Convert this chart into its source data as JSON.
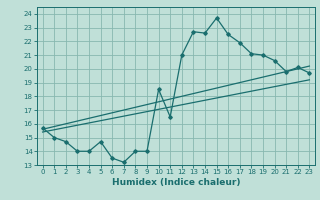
{
  "xlabel": "Humidex (Indice chaleur)",
  "bg_color": "#c0e0d8",
  "grid_color": "#88b8b0",
  "line_color": "#1a6e6e",
  "xlim": [
    -0.5,
    23.5
  ],
  "ylim": [
    13,
    24.5
  ],
  "yticks": [
    13,
    14,
    15,
    16,
    17,
    18,
    19,
    20,
    21,
    22,
    23,
    24
  ],
  "xticks": [
    0,
    1,
    2,
    3,
    4,
    5,
    6,
    7,
    8,
    9,
    10,
    11,
    12,
    13,
    14,
    15,
    16,
    17,
    18,
    19,
    20,
    21,
    22,
    23
  ],
  "line1_x": [
    0,
    1,
    2,
    3,
    4,
    5,
    6,
    7,
    8,
    9,
    10,
    11,
    12,
    13,
    14,
    15,
    16,
    17,
    18,
    19,
    20,
    21,
    22,
    23
  ],
  "line1_y": [
    15.7,
    15.0,
    14.7,
    14.0,
    14.0,
    14.7,
    13.5,
    13.2,
    14.0,
    14.0,
    18.5,
    16.5,
    21.0,
    22.7,
    22.6,
    23.7,
    22.5,
    21.9,
    21.1,
    21.0,
    20.6,
    19.8,
    20.1,
    19.7
  ],
  "line2_x": [
    0,
    23
  ],
  "line2_y": [
    15.6,
    20.2
  ],
  "line3_x": [
    0,
    23
  ],
  "line3_y": [
    15.4,
    19.2
  ]
}
